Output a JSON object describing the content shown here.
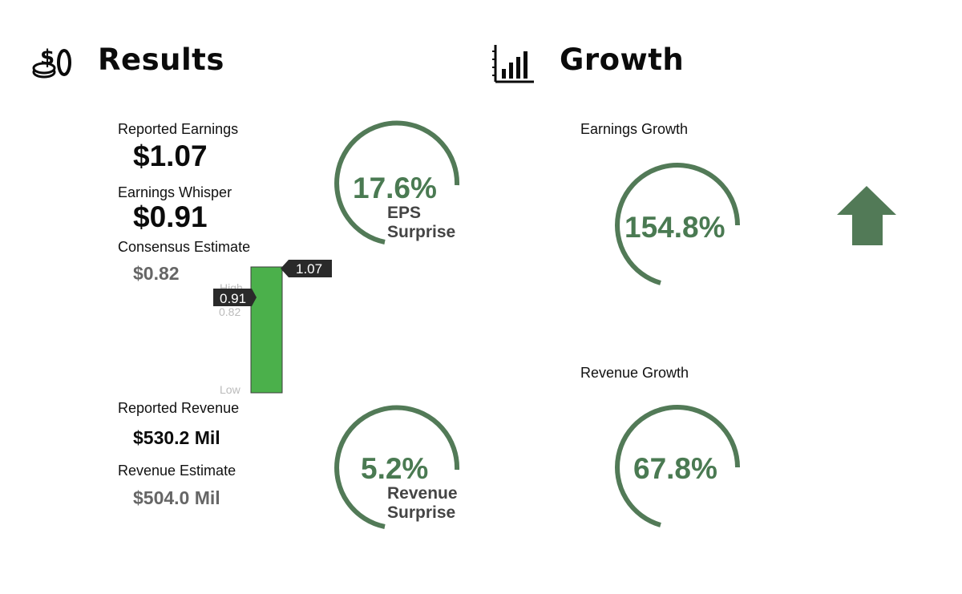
{
  "colors": {
    "accent": "#527a57",
    "bar": "#4bb04b",
    "tag": "#2a2a2a"
  },
  "results": {
    "title": "Results",
    "icon": "coins-dollar-icon",
    "reported_earnings_label": "Reported Earnings",
    "reported_earnings_value": "$1.07",
    "earnings_whisper_label": "Earnings Whisper",
    "earnings_whisper_value": "$0.91",
    "consensus_label": "Consensus Estimate",
    "consensus_value": "$0.82",
    "reported_revenue_label": "Reported Revenue",
    "reported_revenue_value": "$530.2 Mil",
    "revenue_estimate_label": "Revenue Estimate",
    "revenue_estimate_value": "$504.0 Mil"
  },
  "eps_chart": {
    "high_label": "High",
    "low_label": "Low",
    "reported": "1.07",
    "whisper": "0.91",
    "consensus": "0.82"
  },
  "eps_surprise": {
    "value": "17.6%",
    "line1": "EPS",
    "line2": "Surprise"
  },
  "revenue_surprise": {
    "value": "5.2%",
    "line1": "Revenue",
    "line2": "Surprise"
  },
  "growth": {
    "title": "Growth",
    "icon": "bar-chart-icon",
    "earnings_growth_label": "Earnings Growth",
    "earnings_growth_value": "154.8%",
    "revenue_growth_label": "Revenue Growth",
    "revenue_growth_value": "67.8%",
    "trend_icon": "up-arrow-icon"
  }
}
